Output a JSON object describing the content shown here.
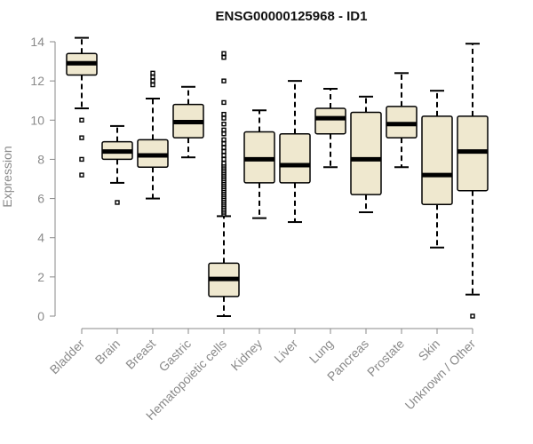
{
  "chart_data": {
    "type": "boxplot",
    "title": "ENSG00000125968 - ID1",
    "xlabel": "",
    "ylabel": "Expression",
    "ylim": [
      0,
      14
    ],
    "yticks": [
      0,
      2,
      4,
      6,
      8,
      10,
      12,
      14
    ],
    "box_fill": "#efe8cf",
    "stroke": "#000000",
    "axis_color": "#8a8a8a",
    "categories": [
      {
        "name": "Bladder",
        "whisker_low": 10.6,
        "q1": 12.3,
        "median": 12.9,
        "q3": 13.4,
        "whisker_high": 14.2,
        "outliers": [
          7.2,
          8.0,
          9.1,
          10.0
        ]
      },
      {
        "name": "Brain",
        "whisker_low": 6.8,
        "q1": 8.0,
        "median": 8.4,
        "q3": 8.9,
        "whisker_high": 9.7,
        "outliers": [
          5.8
        ]
      },
      {
        "name": "Breast",
        "whisker_low": 6.0,
        "q1": 7.6,
        "median": 8.2,
        "q3": 9.0,
        "whisker_high": 11.1,
        "outliers": [
          11.8,
          12.0,
          12.2,
          12.4
        ]
      },
      {
        "name": "Gastric",
        "whisker_low": 8.1,
        "q1": 9.1,
        "median": 9.9,
        "q3": 10.8,
        "whisker_high": 11.7,
        "outliers": []
      },
      {
        "name": "Hematopoietic cells",
        "whisker_low": 0.0,
        "q1": 1.0,
        "median": 1.9,
        "q3": 2.7,
        "whisker_high": 5.1,
        "outliers": [
          5.2,
          5.3,
          5.4,
          5.5,
          5.6,
          5.7,
          5.8,
          5.9,
          6.0,
          6.1,
          6.2,
          6.3,
          6.4,
          6.5,
          6.6,
          6.7,
          6.8,
          6.9,
          7.0,
          7.1,
          7.2,
          7.3,
          7.4,
          7.5,
          7.6,
          7.7,
          7.8,
          8.0,
          8.2,
          8.4,
          8.6,
          8.8,
          9.0,
          9.3,
          9.5,
          9.8,
          10.1,
          10.3,
          10.9,
          12.0,
          13.2,
          13.4
        ]
      },
      {
        "name": "Kidney",
        "whisker_low": 5.0,
        "q1": 6.8,
        "median": 8.0,
        "q3": 9.4,
        "whisker_high": 10.5,
        "outliers": []
      },
      {
        "name": "Liver",
        "whisker_low": 4.8,
        "q1": 6.8,
        "median": 7.7,
        "q3": 9.3,
        "whisker_high": 12.0,
        "outliers": []
      },
      {
        "name": "Lung",
        "whisker_low": 7.6,
        "q1": 9.3,
        "median": 10.1,
        "q3": 10.6,
        "whisker_high": 11.6,
        "outliers": []
      },
      {
        "name": "Pancreas",
        "whisker_low": 5.3,
        "q1": 6.2,
        "median": 8.0,
        "q3": 10.4,
        "whisker_high": 11.2,
        "outliers": []
      },
      {
        "name": "Prostate",
        "whisker_low": 7.6,
        "q1": 9.1,
        "median": 9.8,
        "q3": 10.7,
        "whisker_high": 12.4,
        "outliers": []
      },
      {
        "name": "Skin",
        "whisker_low": 3.5,
        "q1": 5.7,
        "median": 7.2,
        "q3": 10.2,
        "whisker_high": 11.5,
        "outliers": []
      },
      {
        "name": "Unknown / Other",
        "whisker_low": 1.1,
        "q1": 6.4,
        "median": 8.4,
        "q3": 10.2,
        "whisker_high": 13.9,
        "outliers": [
          0.0
        ]
      }
    ]
  }
}
